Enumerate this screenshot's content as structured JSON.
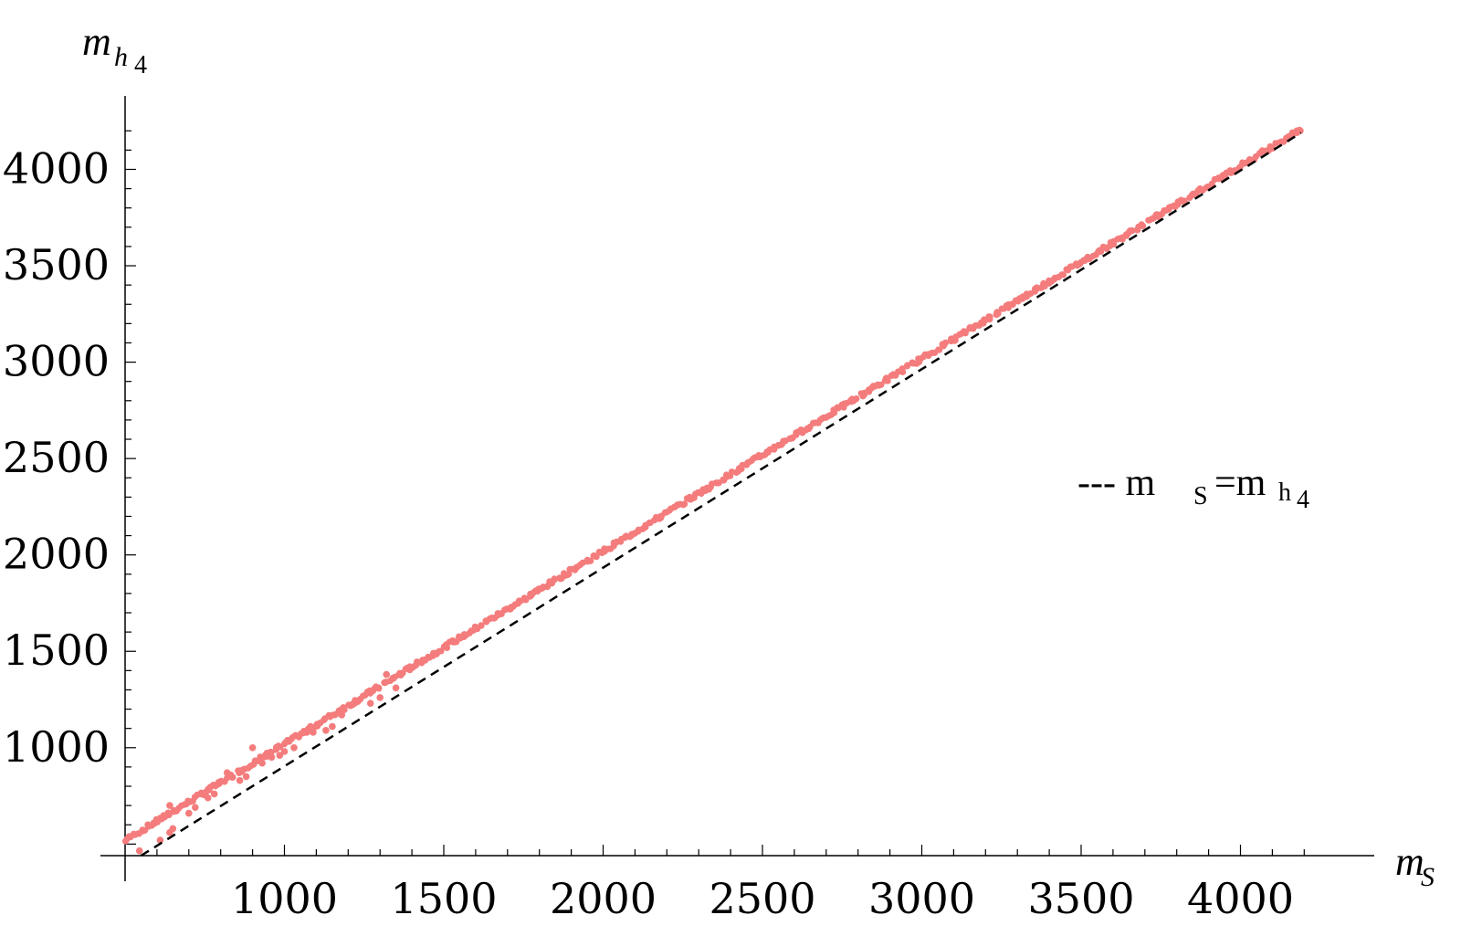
{
  "chart_data": {
    "type": "scatter",
    "xlabel": "m",
    "xlabel_sub": "S",
    "ylabel": "m",
    "ylabel_sub": "h",
    "ylabel_subsub": "4",
    "xlim": [
      500,
      4300
    ],
    "ylim": [
      440,
      4300
    ],
    "x_ticks": [
      1000,
      1500,
      2000,
      2500,
      3000,
      3500,
      4000
    ],
    "y_ticks": [
      1000,
      1500,
      2000,
      2500,
      3000,
      3500,
      4000
    ],
    "x_tick_labels": [
      "1000",
      "1500",
      "2000",
      "2500",
      "3000",
      "3500",
      "4000"
    ],
    "y_tick_labels": [
      "1000",
      "1500",
      "2000",
      "2500",
      "3000",
      "3500",
      "4000"
    ],
    "grid": false,
    "legend_position": "right",
    "series": [
      {
        "kind": "points",
        "color": "#f47c7c",
        "band": {
          "from": 500,
          "to": 4190,
          "step": 12,
          "offset_min": 8,
          "offset_max": 30
        },
        "outliers": [
          [
            545,
            465
          ],
          [
            610,
            520
          ],
          [
            640,
            560
          ],
          [
            650,
            580
          ],
          [
            640,
            700
          ],
          [
            700,
            660
          ],
          [
            720,
            690
          ],
          [
            760,
            740
          ],
          [
            780,
            760
          ],
          [
            790,
            810
          ],
          [
            820,
            870
          ],
          [
            860,
            830
          ],
          [
            880,
            850
          ],
          [
            900,
            1000
          ],
          [
            930,
            920
          ],
          [
            960,
            950
          ],
          [
            985,
            960
          ],
          [
            1000,
            980
          ],
          [
            1030,
            1000
          ],
          [
            1070,
            1080
          ],
          [
            1090,
            1080
          ],
          [
            1130,
            1090
          ],
          [
            1150,
            1110
          ],
          [
            1180,
            1170
          ],
          [
            1220,
            1230
          ],
          [
            1270,
            1230
          ],
          [
            1300,
            1260
          ],
          [
            1320,
            1380
          ],
          [
            1350,
            1310
          ]
        ]
      },
      {
        "kind": "line",
        "name": "m_S = m_h4",
        "color": "#000000",
        "dash": "dashed",
        "points": [
          [
            550,
            440
          ],
          [
            4190,
            4190
          ]
        ]
      }
    ],
    "legend": {
      "main": "--- m",
      "sub1": "S",
      "eq": "=m",
      "sub2": "h",
      "sub3": "4"
    }
  }
}
